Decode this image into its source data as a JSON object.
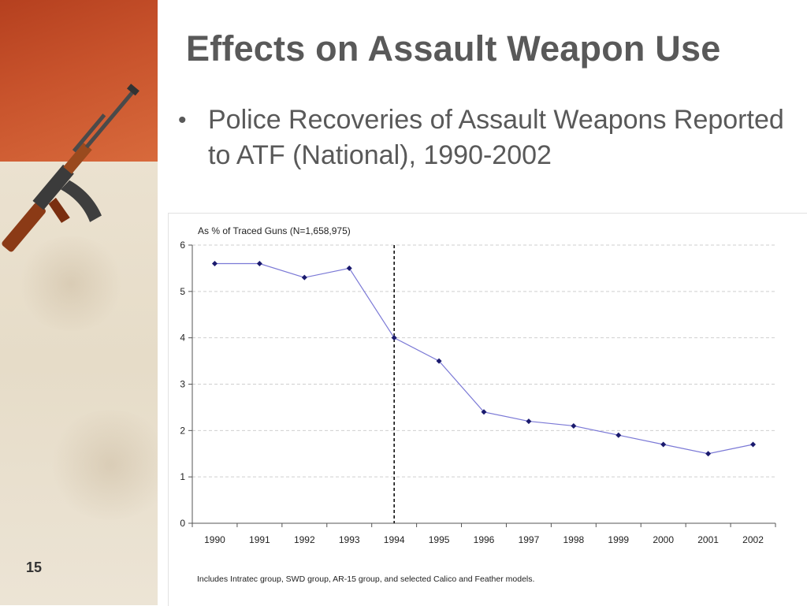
{
  "slide": {
    "title": "Effects on Assault Weapon Use",
    "bullet_marker": "•",
    "bullet_text": "Police Recoveries of Assault Weapons Reported to ATF (National), 1990-2002",
    "slide_number": "15",
    "decorative_image": "rifle-icon"
  },
  "chart_data": {
    "type": "line",
    "title": "As % of Traced Guns (N=1,658,975)",
    "note": "Includes Intratec group, SWD group, AR-15 group, and selected Calico and Feather models.",
    "xlabel": "",
    "ylabel": "",
    "categories": [
      "1990",
      "1991",
      "1992",
      "1993",
      "1994",
      "1995",
      "1996",
      "1997",
      "1998",
      "1999",
      "2000",
      "2001",
      "2002"
    ],
    "series": [
      {
        "values": [
          5.6,
          5.6,
          5.3,
          5.5,
          4.0,
          3.5,
          2.4,
          2.2,
          2.1,
          1.9,
          1.7,
          1.5,
          1.7
        ],
        "color": "#7b79d6",
        "marker_color": "#1a1a6e"
      }
    ],
    "ylim": [
      0,
      6
    ],
    "yticks": [
      0,
      1,
      2,
      3,
      4,
      5,
      6
    ],
    "grid": "horizontal dashed",
    "vertical_reference": {
      "category": "1994",
      "style": "dashed",
      "color": "#000000"
    }
  }
}
